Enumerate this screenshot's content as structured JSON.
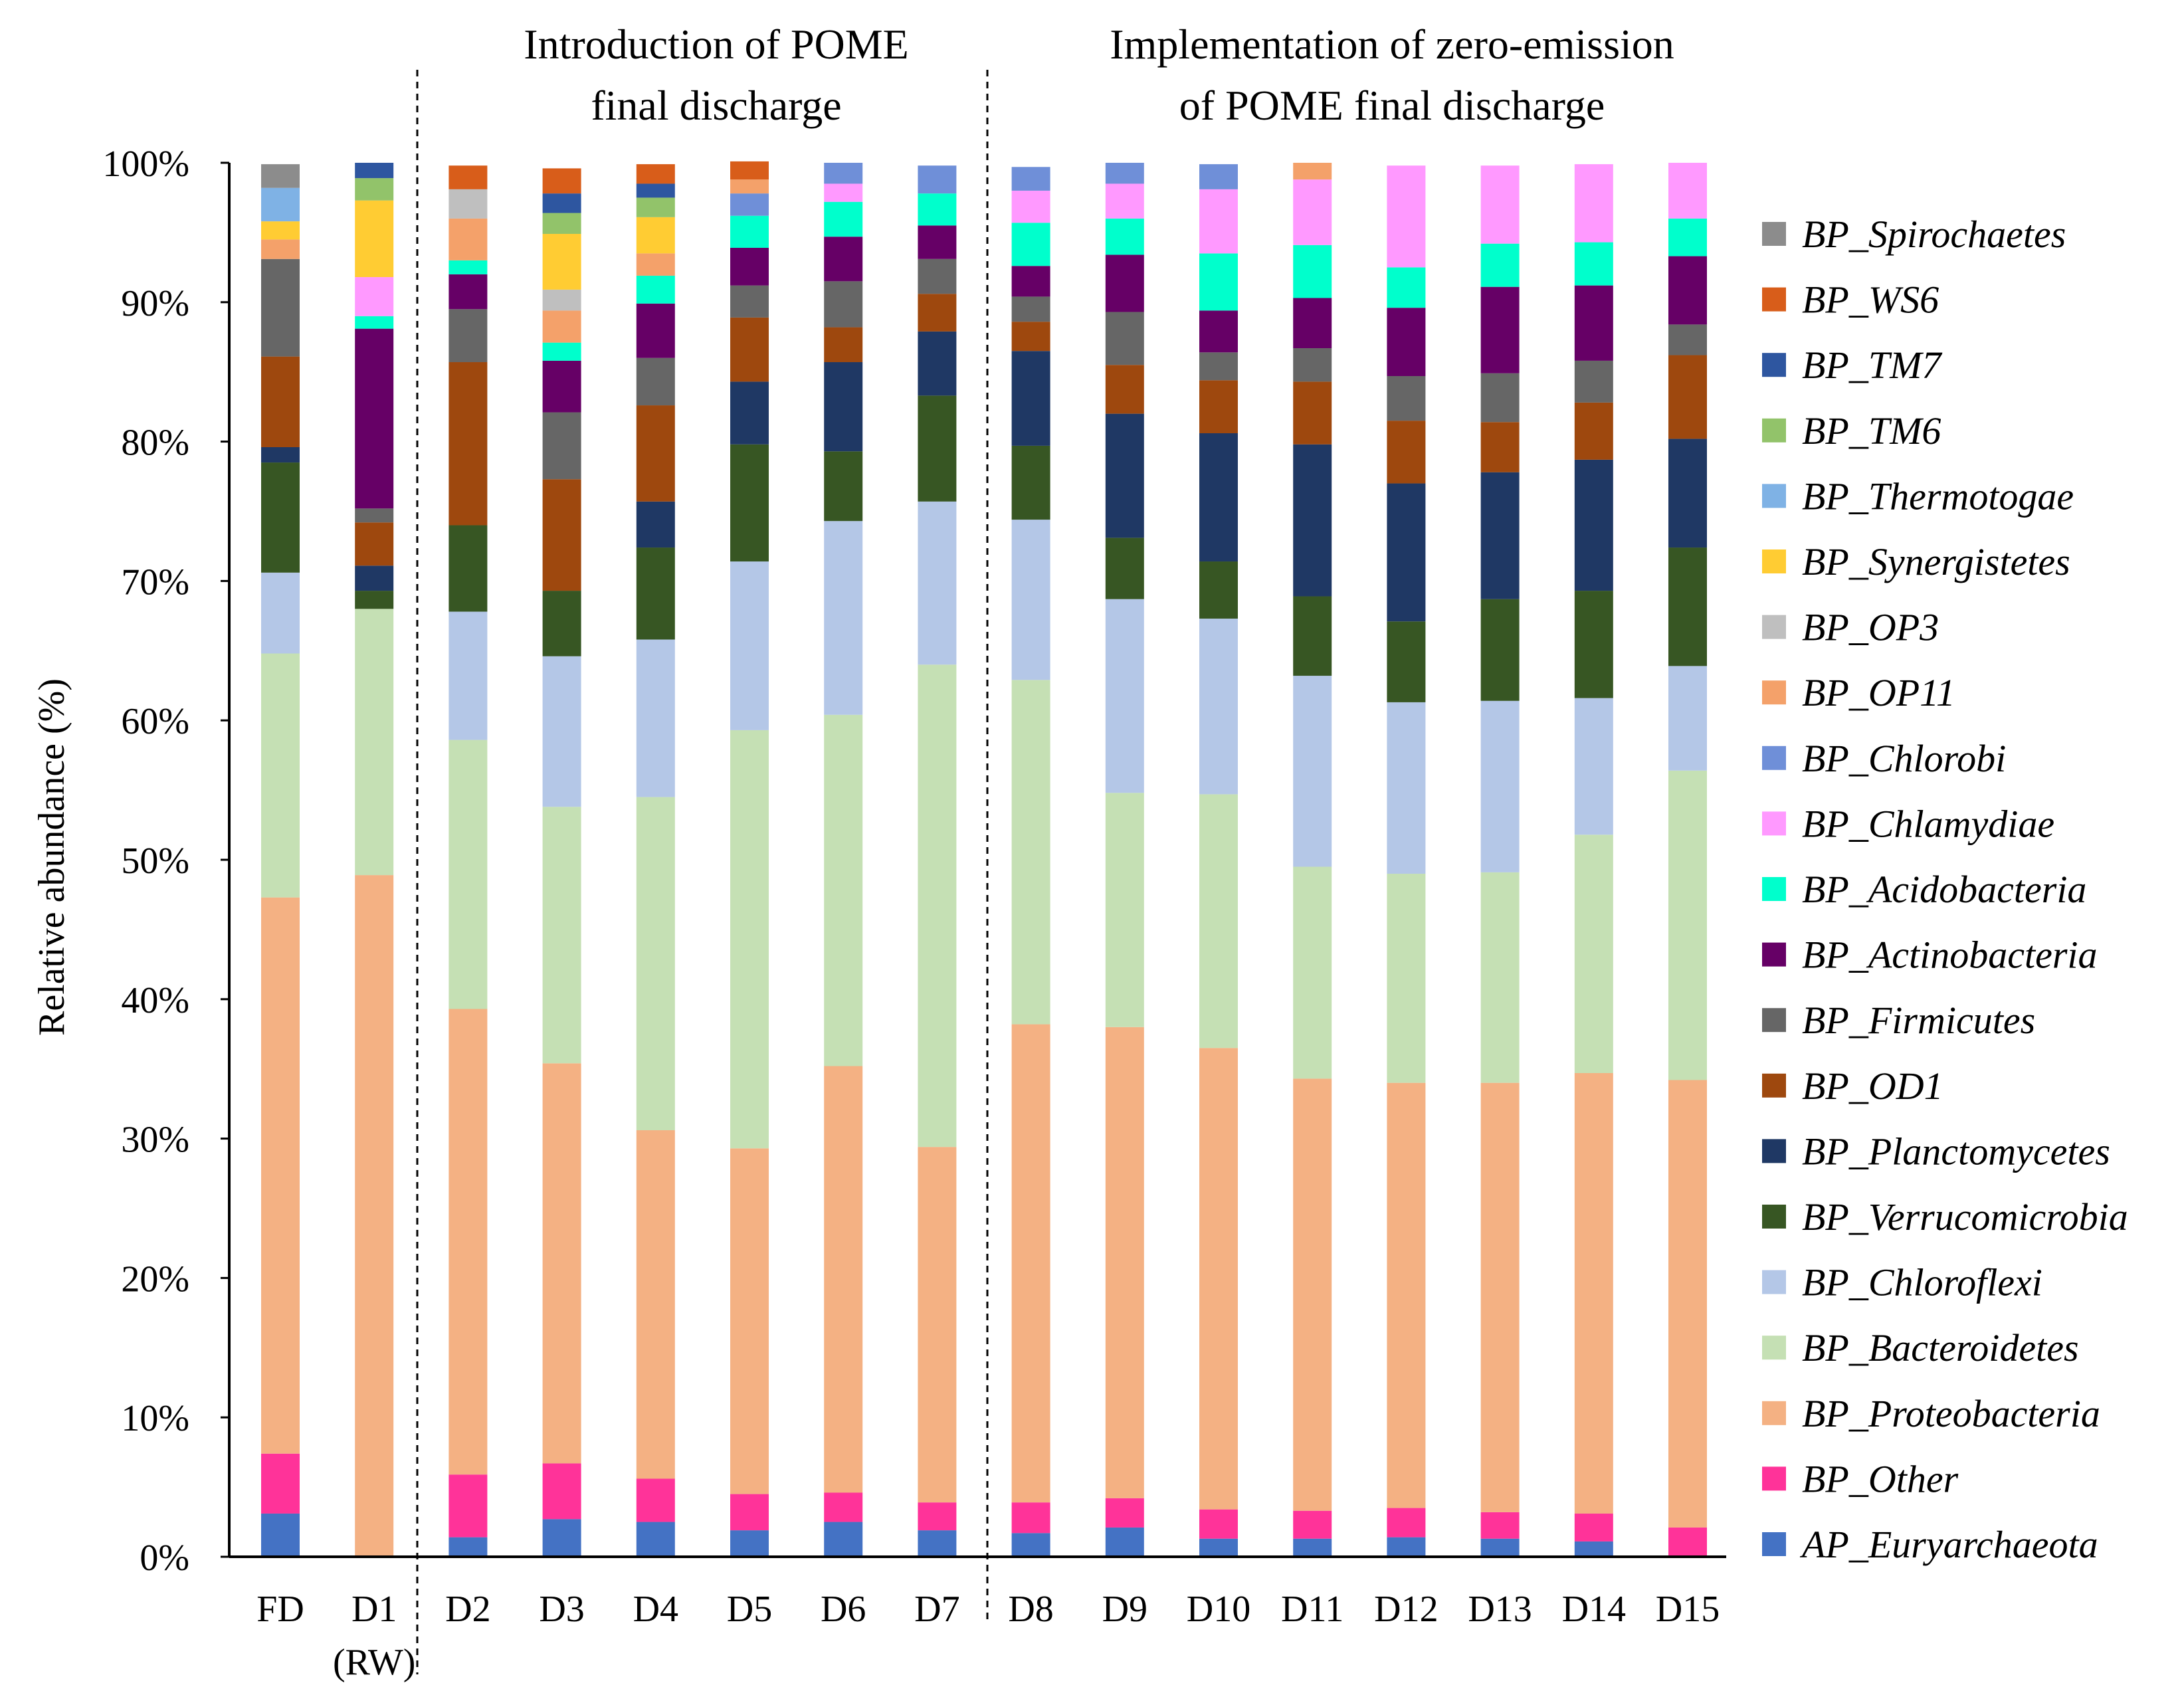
{
  "chart_data": {
    "type": "bar",
    "stacked": true,
    "title": "",
    "ylabel": "Relative abundance (%)",
    "xlabel": "",
    "ylim": [
      0,
      100
    ],
    "ytick_labels": [
      "0%",
      "10%",
      "20%",
      "30%",
      "40%",
      "50%",
      "60%",
      "70%",
      "80%",
      "90%",
      "100%"
    ],
    "categories": [
      "FD",
      "D1",
      "D2",
      "D3",
      "D4",
      "D5",
      "D6",
      "D7",
      "D8",
      "D9",
      "D10",
      "D11",
      "D12",
      "D13",
      "D14",
      "D15"
    ],
    "category_sublabels": [
      "",
      "(RW)",
      "",
      "",
      "",
      "",
      "",
      "",
      "",
      "",
      "",
      "",
      "",
      "",
      "",
      ""
    ],
    "section_titles": [
      {
        "line1": "Introduction of POME",
        "line2": "final discharge"
      },
      {
        "line1": "Implementation of zero-emission",
        "line2": "of POME final discharge"
      }
    ],
    "legend_position": "right",
    "series": [
      {
        "name": "AP_Euryarchaeota",
        "color": "#4472C4",
        "values": [
          3.1,
          0,
          1.4,
          2.7,
          2.5,
          1.9,
          2.5,
          1.9,
          1.7,
          2.1,
          1.3,
          1.3,
          1.4,
          1.3,
          1.1,
          0
        ]
      },
      {
        "name": "BP_Other",
        "color": "#FF3399",
        "values": [
          4.3,
          0,
          4.5,
          4.0,
          3.1,
          2.6,
          2.1,
          2.0,
          2.2,
          2.1,
          2.1,
          2.0,
          2.1,
          1.9,
          2.0,
          2.1
        ]
      },
      {
        "name": "BP_Proteobacteria",
        "color": "#F4B183",
        "values": [
          39.9,
          48.9,
          33.4,
          28.7,
          25.0,
          24.8,
          30.6,
          25.5,
          34.3,
          33.8,
          33.1,
          31.0,
          30.5,
          30.8,
          31.6,
          32.1
        ]
      },
      {
        "name": "BP_Bacteroidetes",
        "color": "#C5E0B4",
        "values": [
          17.5,
          19.1,
          19.3,
          18.4,
          23.9,
          30.0,
          25.2,
          34.6,
          24.7,
          16.8,
          18.2,
          15.2,
          15.0,
          15.1,
          17.1,
          22.2
        ]
      },
      {
        "name": "BP_Chloroflexi",
        "color": "#B4C7E7",
        "values": [
          5.8,
          0,
          9.2,
          10.8,
          11.3,
          12.1,
          13.9,
          11.7,
          11.5,
          13.9,
          12.6,
          13.7,
          12.3,
          12.3,
          9.8,
          7.5
        ]
      },
      {
        "name": "BP_Verrucomicrobia",
        "color": "#375623",
        "values": [
          7.9,
          1.3,
          6.2,
          4.7,
          6.6,
          8.4,
          5.0,
          7.6,
          5.3,
          4.4,
          4.1,
          5.7,
          5.8,
          7.3,
          7.7,
          8.5
        ]
      },
      {
        "name": "BP_Planctomycetes",
        "color": "#1F3864",
        "values": [
          1.1,
          1.8,
          0,
          0,
          3.3,
          4.5,
          6.4,
          4.6,
          6.8,
          8.9,
          9.2,
          10.9,
          9.9,
          9.1,
          9.4,
          7.8
        ]
      },
      {
        "name": "BP_OD1",
        "color": "#9E480E",
        "values": [
          6.5,
          3.1,
          11.7,
          8.0,
          6.9,
          4.6,
          2.5,
          2.7,
          2.1,
          3.5,
          3.8,
          4.5,
          4.5,
          3.6,
          4.1,
          6.0
        ]
      },
      {
        "name": "BP_Firmicutes",
        "color": "#666666",
        "values": [
          7.0,
          1.0,
          3.8,
          4.8,
          3.4,
          2.3,
          3.3,
          2.5,
          1.8,
          3.8,
          2.0,
          2.4,
          3.2,
          3.5,
          3.0,
          2.2
        ]
      },
      {
        "name": "BP_Actinobacteria",
        "color": "#660066",
        "values": [
          0,
          12.9,
          2.5,
          3.7,
          3.9,
          2.7,
          3.2,
          2.4,
          2.2,
          4.1,
          3.0,
          3.6,
          4.9,
          6.2,
          5.4,
          4.9
        ]
      },
      {
        "name": "BP_Acidobacteria",
        "color": "#00FFCC",
        "values": [
          0,
          0.9,
          1.0,
          1.3,
          2.0,
          2.3,
          2.5,
          2.3,
          3.1,
          2.6,
          4.1,
          3.8,
          2.9,
          3.1,
          3.1,
          2.7
        ]
      },
      {
        "name": "BP_Chlamydiae",
        "color": "#FF99FF",
        "values": [
          0,
          2.8,
          0,
          0,
          0,
          0,
          1.3,
          0,
          2.3,
          2.5,
          4.6,
          4.7,
          7.3,
          5.6,
          5.6,
          4.0
        ]
      },
      {
        "name": "BP_Chlorobi",
        "color": "#6F8FD8",
        "values": [
          0,
          0,
          0,
          0,
          0,
          1.6,
          1.5,
          2.0,
          1.7,
          1.5,
          1.8,
          0,
          0,
          0,
          0,
          0
        ]
      },
      {
        "name": "BP_OP11",
        "color": "#F4A16A",
        "values": [
          1.4,
          0,
          3.0,
          2.3,
          1.6,
          1.0,
          0,
          0,
          0,
          0,
          0,
          1.2,
          0,
          0,
          0,
          0
        ]
      },
      {
        "name": "BP_OP3",
        "color": "#BFBFBF",
        "values": [
          0,
          0,
          2.1,
          1.5,
          0,
          0,
          0,
          0,
          0,
          0,
          0,
          0,
          0,
          0,
          0,
          0
        ]
      },
      {
        "name": "BP_Synergistetes",
        "color": "#FFCC33",
        "values": [
          1.3,
          5.5,
          0,
          4.0,
          2.6,
          0,
          0,
          0,
          0,
          0,
          0,
          0,
          0,
          0,
          0,
          0
        ]
      },
      {
        "name": "BP_Thermotogae",
        "color": "#7FB2E5",
        "values": [
          2.4,
          0,
          0,
          0,
          0,
          0,
          0,
          0,
          0,
          0,
          0,
          0,
          0,
          0,
          0,
          0
        ]
      },
      {
        "name": "BP_TM6",
        "color": "#92C36A",
        "values": [
          0,
          1.6,
          0,
          1.5,
          1.4,
          0,
          0,
          0,
          0,
          0,
          0,
          0,
          0,
          0,
          0,
          0
        ]
      },
      {
        "name": "BP_TM7",
        "color": "#2E56A0",
        "values": [
          0,
          1.1,
          0,
          1.4,
          1.0,
          0,
          0,
          0,
          0,
          0,
          0,
          0,
          0,
          0,
          0,
          0
        ]
      },
      {
        "name": "BP_WS6",
        "color": "#D85D1A",
        "values": [
          0,
          0,
          1.7,
          1.8,
          1.4,
          1.3,
          0,
          0,
          0,
          0,
          0,
          0,
          0,
          0,
          0,
          0
        ]
      },
      {
        "name": "BP_Spirochaetes",
        "color": "#8C8C8C",
        "values": [
          1.7,
          0,
          0,
          0,
          0,
          0,
          0,
          0,
          0,
          0,
          0,
          0,
          0,
          0,
          0,
          0
        ]
      }
    ]
  }
}
